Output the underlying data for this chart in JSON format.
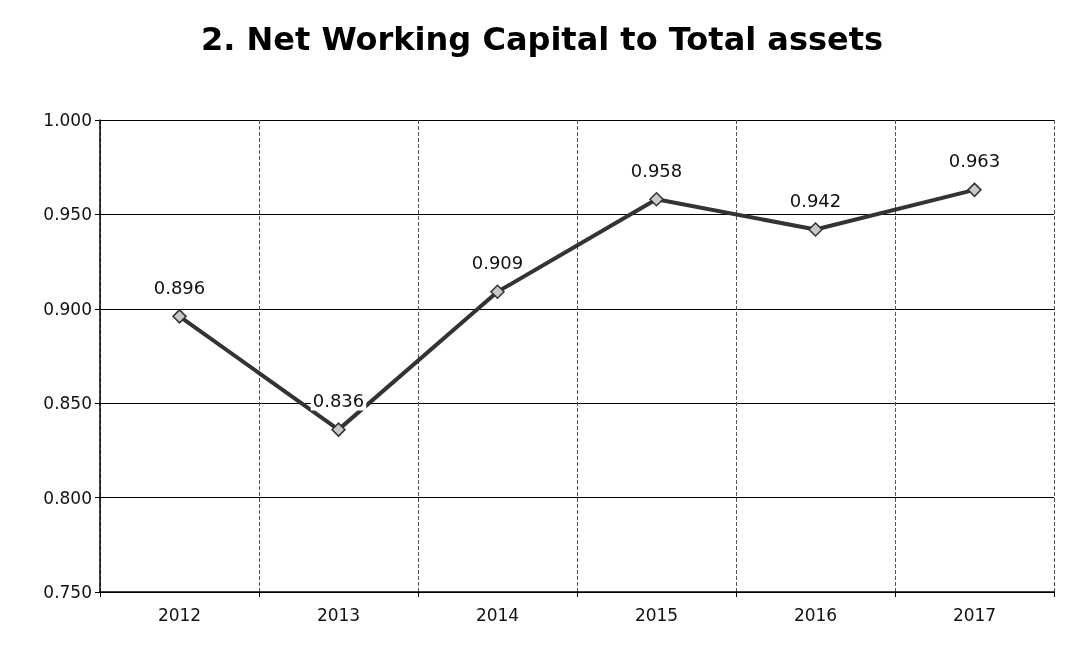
{
  "chart_data": {
    "type": "line",
    "title": "2. Net Working Capital to Total assets",
    "categories": [
      "2012",
      "2013",
      "2014",
      "2015",
      "2016",
      "2017"
    ],
    "series": [
      {
        "color": "#333333",
        "values": [
          0.896,
          0.836,
          0.909,
          0.958,
          0.942,
          0.963
        ]
      }
    ],
    "ylim": [
      0.75,
      1.0
    ],
    "yticks": [
      {
        "value": 0.75,
        "label": "0.750"
      },
      {
        "value": 0.8,
        "label": "0.800"
      },
      {
        "value": 0.85,
        "label": "0.850"
      },
      {
        "value": 0.9,
        "label": "0.900"
      },
      {
        "value": 0.95,
        "label": "0.950"
      },
      {
        "value": 1.0,
        "label": "1.000"
      }
    ],
    "grid": true,
    "marker": "diamond",
    "line_style": "solid",
    "data_labels": true
  }
}
